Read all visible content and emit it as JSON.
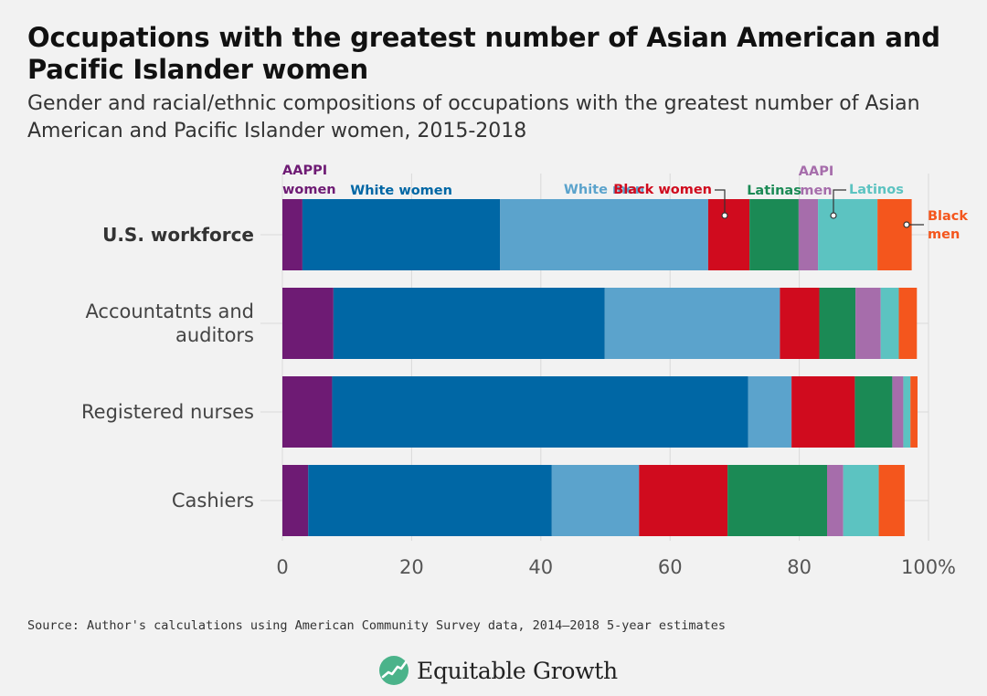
{
  "title": "Occupations with the greatest number of Asian American and Pacific Islander women",
  "subtitle": "Gender and racial/ethnic compositions of occupations with the greatest number of Asian American and Pacific Islander women, 2015-2018",
  "source": "Source: Author's calculations using American Community Survey data, 2014—2018 5-year estimates",
  "logo_text": "Equitable Growth",
  "chart_data": {
    "type": "bar",
    "orientation": "horizontal",
    "stacked": true,
    "categories": [
      "U.S. workforce",
      "Accountatnts and auditors",
      "Registered nurses",
      "Cashiers"
    ],
    "category_bold": [
      true,
      false,
      false,
      false
    ],
    "xlim": [
      0,
      100
    ],
    "xticks": [
      "0",
      "20",
      "40",
      "60",
      "80",
      "100%"
    ],
    "grid": "vertical lines",
    "legend_placement": "labels above top bar",
    "series": [
      {
        "name": "AAPPI women",
        "label": [
          "AAPPI",
          "women"
        ],
        "color": "#6e1b74",
        "values": [
          3.1,
          7.9,
          7.7,
          4.0
        ]
      },
      {
        "name": "White women",
        "label": [
          "White women"
        ],
        "color": "#0067a5",
        "values": [
          30.6,
          42.0,
          64.4,
          37.7
        ]
      },
      {
        "name": "White men",
        "label": [
          "White men"
        ],
        "color": "#5ba3cc",
        "values": [
          32.2,
          27.1,
          6.7,
          13.5
        ]
      },
      {
        "name": "Black women",
        "label": [
          "Black women"
        ],
        "color": "#d00b1e",
        "values": [
          6.4,
          6.1,
          9.8,
          13.7
        ]
      },
      {
        "name": "Latinas",
        "label": [
          "Latinas"
        ],
        "color": "#1b8a55",
        "values": [
          7.6,
          5.6,
          5.8,
          15.4
        ]
      },
      {
        "name": "AAPI men",
        "label": [
          "AAPI",
          "men"
        ],
        "color": "#a66dab",
        "values": [
          3.0,
          3.9,
          1.7,
          2.5
        ]
      },
      {
        "name": "Latinos",
        "label": [
          "Latinos"
        ],
        "color": "#5cc3c1",
        "values": [
          9.2,
          2.8,
          1.1,
          5.5
        ]
      },
      {
        "name": "Black men",
        "label": [
          "Black",
          "men"
        ],
        "color": "#f4561d",
        "values": [
          5.3,
          2.8,
          1.1,
          4.0
        ]
      }
    ]
  }
}
